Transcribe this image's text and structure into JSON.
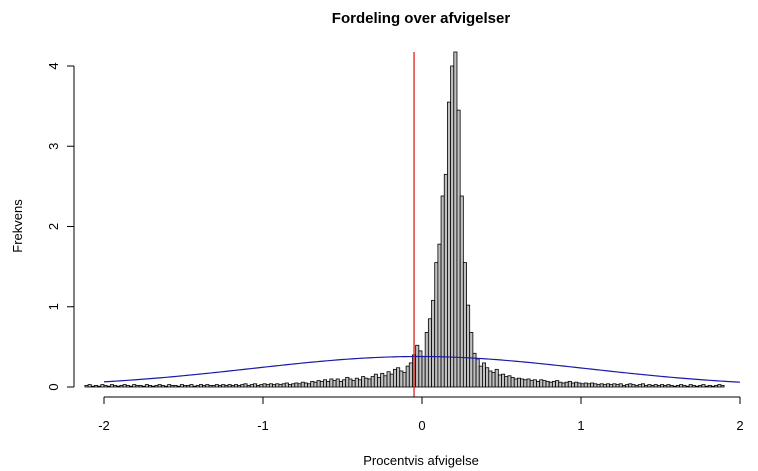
{
  "chart_data": {
    "type": "bar",
    "title": "Fordeling over afvigelser",
    "xlabel": "Procentvis afvigelse",
    "ylabel": "Frekvens",
    "xlim": [
      -2.12,
      2.1
    ],
    "ylim": [
      0,
      4.25
    ],
    "x_ticks": [
      -2,
      -1,
      0,
      1,
      2
    ],
    "x_tick_labels": [
      "-2",
      "-1",
      "0",
      "1",
      "2"
    ],
    "y_ticks": [
      0,
      1,
      2,
      3,
      4
    ],
    "y_tick_labels": [
      "0",
      "1",
      "2",
      "3",
      "4"
    ],
    "bin_width": 0.02,
    "histogram_start": -2.12,
    "histogram_densities": [
      0.02,
      0.03,
      0.01,
      0.02,
      0.01,
      0.03,
      0.02,
      0.01,
      0.03,
      0.02,
      0.01,
      0.02,
      0.03,
      0.02,
      0.01,
      0.03,
      0.02,
      0.02,
      0.01,
      0.03,
      0.02,
      0.01,
      0.02,
      0.03,
      0.02,
      0.01,
      0.03,
      0.02,
      0.02,
      0.01,
      0.03,
      0.02,
      0.02,
      0.03,
      0.01,
      0.02,
      0.03,
      0.02,
      0.03,
      0.02,
      0.02,
      0.03,
      0.02,
      0.03,
      0.02,
      0.03,
      0.02,
      0.03,
      0.02,
      0.03,
      0.04,
      0.02,
      0.03,
      0.04,
      0.02,
      0.03,
      0.04,
      0.03,
      0.04,
      0.03,
      0.04,
      0.03,
      0.04,
      0.05,
      0.03,
      0.04,
      0.05,
      0.04,
      0.06,
      0.05,
      0.04,
      0.07,
      0.06,
      0.08,
      0.07,
      0.09,
      0.07,
      0.1,
      0.08,
      0.1,
      0.07,
      0.09,
      0.12,
      0.1,
      0.08,
      0.11,
      0.09,
      0.13,
      0.11,
      0.1,
      0.13,
      0.16,
      0.12,
      0.17,
      0.14,
      0.19,
      0.16,
      0.22,
      0.24,
      0.2,
      0.18,
      0.26,
      0.3,
      0.4,
      0.52,
      0.45,
      0.38,
      0.68,
      0.85,
      1.08,
      1.55,
      1.78,
      2.38,
      2.65,
      3.55,
      4.0,
      4.25,
      3.45,
      2.38,
      1.55,
      1.02,
      0.68,
      0.42,
      0.35,
      0.26,
      0.3,
      0.24,
      0.2,
      0.18,
      0.22,
      0.15,
      0.16,
      0.13,
      0.14,
      0.12,
      0.1,
      0.11,
      0.1,
      0.09,
      0.1,
      0.08,
      0.09,
      0.07,
      0.09,
      0.08,
      0.07,
      0.06,
      0.07,
      0.08,
      0.06,
      0.05,
      0.06,
      0.07,
      0.05,
      0.06,
      0.05,
      0.04,
      0.05,
      0.04,
      0.05,
      0.04,
      0.03,
      0.04,
      0.03,
      0.04,
      0.03,
      0.04,
      0.03,
      0.04,
      0.02,
      0.03,
      0.04,
      0.03,
      0.02,
      0.03,
      0.04,
      0.02,
      0.03,
      0.02,
      0.03,
      0.02,
      0.03,
      0.02,
      0.03,
      0.02,
      0.01,
      0.02,
      0.03,
      0.02,
      0.01,
      0.03,
      0.02,
      0.01,
      0.02,
      0.03,
      0.01,
      0.02,
      0.01,
      0.02,
      0.03,
      0.02
    ],
    "normal_curve": {
      "mean": -0.02,
      "sd": 1.05,
      "color": "#1a1aa8"
    },
    "vertical_line": {
      "x": -0.05,
      "color": "#e02020"
    },
    "grid": false,
    "bar_fill": "#c0c0c0",
    "bar_stroke": "#000000"
  }
}
